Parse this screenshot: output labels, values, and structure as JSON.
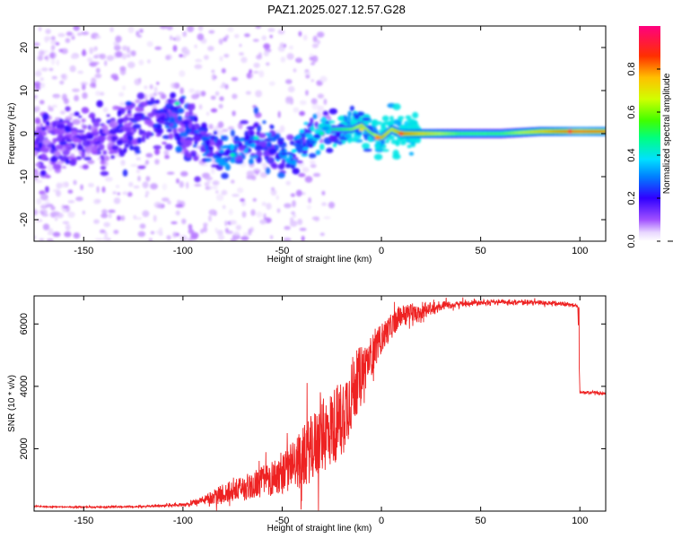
{
  "title": "PAZ1.2025.027.12.57.G28",
  "colors": {
    "snr_line": "#ee2222",
    "frame": "#000000",
    "scatter_low": "#d8b8ff",
    "scatter_mid": "#8a2be2",
    "scatter_dark": "#4b00c8"
  },
  "chart_data": [
    {
      "type": "heatmap",
      "name": "spectrogram",
      "xlabel": "Height of straight line (km)",
      "ylabel": "Frequency (Hz)",
      "xlim": [
        -175,
        113
      ],
      "ylim": [
        -25,
        25
      ],
      "xticks": [
        -150,
        -100,
        -50,
        0,
        50,
        100
      ],
      "xtick_labels": [
        "-150",
        "-100",
        "-50",
        "0",
        "50",
        "100"
      ],
      "yticks": [
        -20,
        -10,
        0,
        10,
        20
      ],
      "ytick_labels": [
        "-20",
        "-10",
        "0",
        "10",
        "20"
      ],
      "colorbar": {
        "label": "Normalized spectral amplitude",
        "range": [
          0,
          1
        ],
        "ticks": [
          0.0,
          0.2,
          0.4,
          0.6,
          0.8
        ],
        "tick_labels": [
          "0.0",
          "0.2",
          "0.4",
          "0.6",
          "0.8"
        ]
      },
      "ridge": {
        "description": "frequency track of main signal",
        "x": [
          -160,
          -140,
          -120,
          -105,
          -95,
          -85,
          -75,
          -65,
          -55,
          -45,
          -35,
          -25,
          -15,
          -10,
          -5,
          0,
          5,
          10,
          20,
          40,
          60,
          80,
          100,
          113
        ],
        "freq": [
          -2,
          -1,
          1,
          4,
          0,
          -3,
          -5,
          -1,
          -4,
          -5,
          0,
          1,
          1,
          2,
          0,
          -1,
          1,
          0,
          0,
          0,
          0,
          0.5,
          0.5,
          0.5
        ],
        "amplitude": [
          0.2,
          0.2,
          0.25,
          0.3,
          0.25,
          0.3,
          0.35,
          0.35,
          0.3,
          0.35,
          0.4,
          0.45,
          0.6,
          0.7,
          0.6,
          0.8,
          0.7,
          0.85,
          0.75,
          0.55,
          0.55,
          0.75,
          0.9,
          0.85
        ]
      }
    },
    {
      "type": "line",
      "name": "snr",
      "xlabel": "Height of straight line (km)",
      "ylabel": "SNR (10 * v/v)",
      "xlim": [
        -175,
        113
      ],
      "ylim": [
        0,
        6900
      ],
      "xticks": [
        -150,
        -100,
        -50,
        0,
        50,
        100
      ],
      "xtick_labels": [
        "-150",
        "-100",
        "-50",
        "0",
        "50",
        "100"
      ],
      "yticks": [
        2000,
        4000,
        6000
      ],
      "ytick_labels": [
        "2000",
        "4000",
        "6000"
      ],
      "series": [
        {
          "name": "SNR",
          "x": [
            -175,
            -160,
            -140,
            -120,
            -100,
            -90,
            -80,
            -70,
            -60,
            -50,
            -40,
            -30,
            -20,
            -15,
            -10,
            -5,
            0,
            5,
            10,
            20,
            30,
            40,
            50,
            60,
            70,
            80,
            90,
            98,
            99,
            100,
            105,
            113
          ],
          "y": [
            150,
            130,
            130,
            150,
            200,
            300,
            450,
            600,
            800,
            1000,
            1400,
            2000,
            2600,
            3400,
            4200,
            4800,
            5400,
            5800,
            6200,
            6400,
            6550,
            6650,
            6700,
            6700,
            6700,
            6680,
            6650,
            6600,
            6500,
            3800,
            3800,
            3750
          ],
          "noise": [
            20,
            20,
            25,
            30,
            60,
            150,
            400,
            500,
            650,
            800,
            1200,
            1500,
            1600,
            1500,
            1100,
            800,
            600,
            500,
            400,
            300,
            150,
            100,
            80,
            70,
            70,
            70,
            70,
            70,
            70,
            50,
            50,
            50
          ]
        }
      ]
    }
  ]
}
